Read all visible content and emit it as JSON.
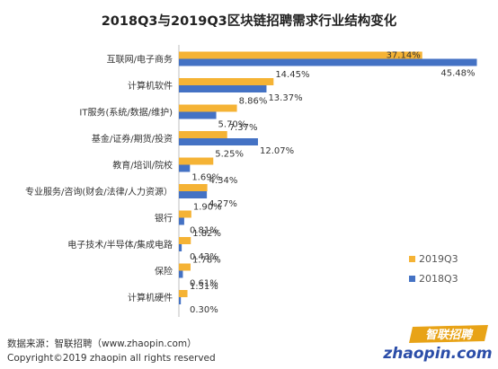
{
  "title": "2018Q3与2019Q3区块链招聘需求行业结构变化",
  "legend": {
    "series_a": "2019Q3",
    "series_b": "2018Q3"
  },
  "footer": {
    "source": "数据来源：智联招聘（www.zhaopin.com）",
    "copyright": "Copyright©2019 zhaopin all rights reserved"
  },
  "logo": {
    "brand_cn": "智联招聘",
    "brand_latin": "zhaopin.com"
  },
  "colors": {
    "series_2019": "#F5B335",
    "series_2018": "#4472C4"
  },
  "chart_data": {
    "type": "bar",
    "orientation": "horizontal",
    "categories": [
      "互联网/电子商务",
      "计算机软件",
      "IT服务(系统/数据/维护)",
      "基金/证券/期货/投资",
      "教育/培训/院校",
      "专业服务/咨询(财会/法律/人力资源）",
      "银行",
      "电子技术/半导体/集成电路",
      "保险",
      "计算机硬件"
    ],
    "series": [
      {
        "name": "2019Q3",
        "values": [
          37.14,
          14.45,
          8.86,
          7.37,
          5.25,
          4.34,
          1.9,
          1.82,
          1.78,
          1.31
        ],
        "labels": [
          "37.14%",
          "14.45%",
          "8.86%",
          "7.37%",
          "5.25%",
          "4.34%",
          "1.90%",
          "1.82%",
          "1.78%",
          "1.31%"
        ]
      },
      {
        "name": "2018Q3",
        "values": [
          45.48,
          13.37,
          5.7,
          12.07,
          1.69,
          4.27,
          0.81,
          0.43,
          0.61,
          0.3
        ],
        "labels": [
          "45.48%",
          "13.37%",
          "5.70%",
          "12.07%",
          "1.69%",
          "4.27%",
          "0.81%",
          "0.43%",
          "0.61%",
          "0.30%"
        ]
      }
    ],
    "xlim": [
      0,
      50
    ],
    "legend_position": "bottom-right",
    "grid": false
  }
}
